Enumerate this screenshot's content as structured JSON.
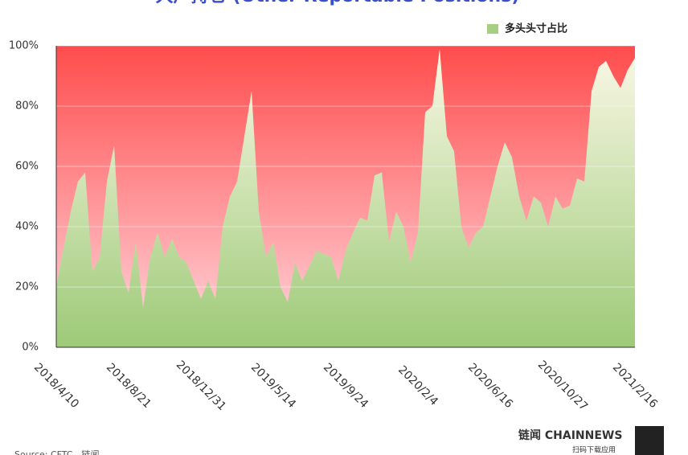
{
  "chart_data": {
    "type": "area",
    "title": "大户持仓 (Other Reportable Positions)",
    "categories": [
      "2018/4/10",
      null,
      null,
      null,
      null,
      null,
      null,
      null,
      null,
      null,
      "2018/8/21",
      null,
      null,
      null,
      null,
      null,
      null,
      null,
      null,
      null,
      "2018/12/31",
      null,
      null,
      null,
      null,
      null,
      null,
      null,
      null,
      null,
      "2019/5/14",
      null,
      null,
      null,
      null,
      null,
      null,
      null,
      null,
      null,
      "2019/9/24",
      null,
      null,
      null,
      null,
      null,
      null,
      null,
      null,
      null,
      "2020/2/4",
      null,
      null,
      null,
      null,
      null,
      null,
      null,
      null,
      null,
      "2020/6/16",
      null,
      null,
      null,
      null,
      null,
      null,
      null,
      null,
      null,
      "2020/10/27",
      null,
      null,
      null,
      null,
      null,
      null,
      null,
      null,
      null,
      "2021/2/16"
    ],
    "series": [
      {
        "name": "多头头寸占比",
        "color": "#a6cf82",
        "values": [
          20,
          33,
          45,
          55,
          58,
          25,
          30,
          55,
          67,
          25,
          18,
          35,
          13,
          30,
          38,
          30,
          36,
          30,
          28,
          22,
          16,
          22,
          16,
          40,
          50,
          55,
          70,
          85,
          45,
          30,
          35,
          20,
          15,
          28,
          22,
          27,
          32,
          31,
          30,
          22,
          32,
          38,
          43,
          42,
          57,
          58,
          35,
          45,
          40,
          28,
          38,
          78,
          80,
          99,
          70,
          65,
          40,
          33,
          38,
          40,
          50,
          60,
          68,
          63,
          50,
          42,
          50,
          48,
          40,
          50,
          46,
          47,
          56,
          55,
          85,
          93,
          95,
          90,
          86,
          92,
          96
        ]
      }
    ],
    "background_color": "#ff4c4c",
    "ylim": [
      0,
      100
    ],
    "yticks": [
      {
        "value": 0,
        "label": "0%"
      },
      {
        "value": 20,
        "label": "20%"
      },
      {
        "value": 40,
        "label": "40%"
      },
      {
        "value": 60,
        "label": "60%"
      },
      {
        "value": 80,
        "label": "80%"
      },
      {
        "value": 100,
        "label": "100%"
      }
    ],
    "grid": true,
    "legend": "top-right",
    "source": "Source: CFTC，链闻"
  },
  "branding": {
    "logo": "链闻 CHAINNEWS",
    "tagline": "扫码下载应用"
  }
}
